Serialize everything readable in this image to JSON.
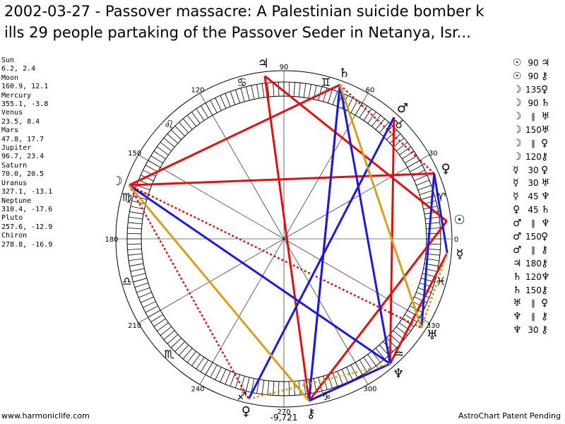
{
  "title": {
    "line1": "2002-03-27 - Passover massacre: A Palestinian suicide bomber k",
    "line2": "ills 29 people partaking of the Passover Seder in Netanya, Isr..."
  },
  "planets": [
    {
      "name": "Sun",
      "values": "6.2, 2.4"
    },
    {
      "name": "Moon",
      "values": "160.9, 12.1"
    },
    {
      "name": "Mercury",
      "values": "355.1, -3.8"
    },
    {
      "name": "Venus",
      "values": "23.5, 8.4"
    },
    {
      "name": "Mars",
      "values": "47.8, 17.7"
    },
    {
      "name": "Jupiter",
      "values": "96.7, 23.4"
    },
    {
      "name": "Saturn",
      "values": "70.0, 20.5"
    },
    {
      "name": "Uranus",
      "values": "327.1, -13.1"
    },
    {
      "name": "Neptune",
      "values": "310.4, -17.6"
    },
    {
      "name": "Pluto",
      "values": "257.6, -12.9"
    },
    {
      "name": "Chiron",
      "values": "278.8, -16.9"
    }
  ],
  "aspects": [
    {
      "p1": "☉",
      "aspect": "90",
      "p2": "♃"
    },
    {
      "p1": "☉",
      "aspect": "90",
      "p2": "⚷"
    },
    {
      "p1": "☽",
      "aspect": "135",
      "p2": "♀"
    },
    {
      "p1": "☽",
      "aspect": "90",
      "p2": "♄"
    },
    {
      "p1": "☽",
      "aspect": "∥",
      "p2": "♅"
    },
    {
      "p1": "☽",
      "aspect": "150",
      "p2": "♅"
    },
    {
      "p1": "☽",
      "aspect": "∥",
      "p2": "♀"
    },
    {
      "p1": "☽",
      "aspect": "120",
      "p2": "⚷"
    },
    {
      "p1": "☿",
      "aspect": "30",
      "p2": "♀"
    },
    {
      "p1": "☿",
      "aspect": "30",
      "p2": "♅"
    },
    {
      "p1": "☿",
      "aspect": "45",
      "p2": "♆"
    },
    {
      "p1": "♀",
      "aspect": "45",
      "p2": "♄"
    },
    {
      "p1": "♂",
      "aspect": "∥",
      "p2": "♆"
    },
    {
      "p1": "♂",
      "aspect": "150",
      "p2": "♀"
    },
    {
      "p1": "♂",
      "aspect": "∥",
      "p2": "⚷"
    },
    {
      "p1": "♃",
      "aspect": "180",
      "p2": "⚷"
    },
    {
      "p1": "♄",
      "aspect": "120",
      "p2": "♆"
    },
    {
      "p1": "♄",
      "aspect": "150",
      "p2": "⚷"
    },
    {
      "p1": "♅",
      "aspect": "∥",
      "p2": "♀"
    },
    {
      "p1": "♆",
      "aspect": "∥",
      "p2": "⚷"
    },
    {
      "p1": "♆",
      "aspect": "30",
      "p2": "⚷"
    }
  ],
  "wheel": {
    "degree_labels": [
      "0",
      "30",
      "60",
      "90",
      "120",
      "150",
      "180",
      "210",
      "240",
      "270",
      "300",
      "330"
    ],
    "bottom_value": "-9,721",
    "planet_glyphs": [
      {
        "name": "sun",
        "glyph": "☉",
        "lon": 6.2
      },
      {
        "name": "moon",
        "glyph": "☽",
        "lon": 160.9
      },
      {
        "name": "mercury",
        "glyph": "☿",
        "lon": 355.1
      },
      {
        "name": "venus",
        "glyph": "♀",
        "lon": 23.5
      },
      {
        "name": "mars",
        "glyph": "♂",
        "lon": 47.8
      },
      {
        "name": "jupiter",
        "glyph": "♃",
        "lon": 96.7
      },
      {
        "name": "saturn",
        "glyph": "♄",
        "lon": 70.0
      },
      {
        "name": "uranus",
        "glyph": "♅",
        "lon": 327.1
      },
      {
        "name": "neptune",
        "glyph": "♆",
        "lon": 310.4
      },
      {
        "name": "pluto",
        "glyph": "♀",
        "lon": 257.6
      },
      {
        "name": "chiron",
        "glyph": "⚷",
        "lon": 278.8
      }
    ],
    "sign_glyphs": [
      {
        "name": "aries",
        "glyph": "♈"
      },
      {
        "name": "taurus",
        "glyph": "♉"
      },
      {
        "name": "gemini",
        "glyph": "♊"
      },
      {
        "name": "cancer",
        "glyph": "♋"
      },
      {
        "name": "leo",
        "glyph": "♌"
      },
      {
        "name": "virgo",
        "glyph": "♍"
      },
      {
        "name": "libra",
        "glyph": "♎"
      },
      {
        "name": "scorpio",
        "glyph": "♏"
      },
      {
        "name": "sagittarius",
        "glyph": "♐"
      },
      {
        "name": "capricorn",
        "glyph": "♑"
      },
      {
        "name": "aquarius",
        "glyph": "♒"
      },
      {
        "name": "pisces",
        "glyph": "♓"
      }
    ],
    "aspect_lines": [
      {
        "from": "jupiter",
        "to": "chiron",
        "color": "#e01010",
        "style": "solid"
      },
      {
        "from": "saturn",
        "to": "chiron",
        "color": "#e01010",
        "style": "solid"
      },
      {
        "from": "saturn",
        "to": "moon",
        "color": "#e01010",
        "style": "solid"
      },
      {
        "from": "moon",
        "to": "venus",
        "color": "#e01010",
        "style": "solid"
      },
      {
        "from": "jupiter",
        "to": "sun",
        "color": "#e01010",
        "style": "solid"
      },
      {
        "from": "sun",
        "to": "chiron",
        "color": "#e01010",
        "style": "solid"
      },
      {
        "from": "mars",
        "to": "neptune",
        "color": "#e01010",
        "style": "solid"
      },
      {
        "from": "neptune",
        "to": "chiron",
        "color": "#e01010",
        "style": "solid"
      },
      {
        "from": "mercury",
        "to": "neptune",
        "color": "#e01010",
        "style": "solid"
      },
      {
        "from": "moon",
        "to": "uranus",
        "color": "#e01010",
        "style": "dotted"
      },
      {
        "from": "moon",
        "to": "pluto",
        "color": "#e01010",
        "style": "dotted"
      },
      {
        "from": "venus",
        "to": "saturn",
        "color": "#e01010",
        "style": "dotted"
      },
      {
        "from": "mars",
        "to": "pluto",
        "color": "#e01010",
        "style": "dotted"
      },
      {
        "from": "mercury",
        "to": "uranus",
        "color": "#e01010",
        "style": "dotted"
      },
      {
        "from": "mercury",
        "to": "venus",
        "color": "#1a1adc",
        "style": "solid"
      },
      {
        "from": "venus",
        "to": "uranus",
        "color": "#1a1adc",
        "style": "solid"
      },
      {
        "from": "saturn",
        "to": "neptune",
        "color": "#1a1adc",
        "style": "solid"
      },
      {
        "from": "moon",
        "to": "neptune",
        "color": "#1a1adc",
        "style": "solid"
      },
      {
        "from": "mars",
        "to": "pluto",
        "color": "#1a1adc",
        "style": "solid"
      },
      {
        "from": "saturn",
        "to": "chiron",
        "color": "#1a1adc",
        "style": "solid"
      },
      {
        "from": "chiron",
        "to": "neptune",
        "color": "#1a1adc",
        "style": "solid"
      },
      {
        "from": "moon",
        "to": "chiron",
        "color": "#d4a020",
        "style": "solid"
      },
      {
        "from": "saturn",
        "to": "uranus",
        "color": "#d4a020",
        "style": "solid"
      },
      {
        "from": "pluto",
        "to": "neptune",
        "color": "#d4a020",
        "style": "dotted"
      },
      {
        "from": "mercury",
        "to": "uranus",
        "color": "#d4a020",
        "style": "dotted"
      }
    ],
    "colors": {
      "red": "#e01010",
      "blue": "#1a1adc",
      "gold": "#d4a020"
    }
  },
  "footer": {
    "left": "www.harmoniclife.com",
    "right": "AstroChart Patent Pending"
  }
}
